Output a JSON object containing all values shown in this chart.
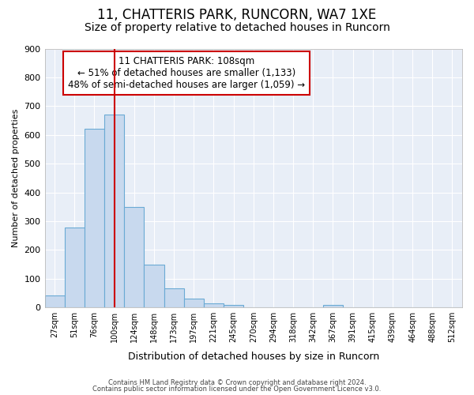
{
  "title1": "11, CHATTERIS PARK, RUNCORN, WA7 1XE",
  "title2": "Size of property relative to detached houses in Runcorn",
  "xlabel": "Distribution of detached houses by size in Runcorn",
  "ylabel": "Number of detached properties",
  "categories": [
    "27sqm",
    "51sqm",
    "76sqm",
    "100sqm",
    "124sqm",
    "148sqm",
    "173sqm",
    "197sqm",
    "221sqm",
    "245sqm",
    "270sqm",
    "294sqm",
    "318sqm",
    "342sqm",
    "367sqm",
    "391sqm",
    "415sqm",
    "439sqm",
    "464sqm",
    "488sqm",
    "512sqm"
  ],
  "values": [
    42,
    278,
    622,
    670,
    348,
    148,
    65,
    30,
    14,
    10,
    0,
    0,
    0,
    0,
    8,
    0,
    0,
    0,
    0,
    0,
    0
  ],
  "bar_color": "#c8d9ee",
  "bar_edge_color": "#6aaad4",
  "property_bin_index": 3,
  "annotation_title": "11 CHATTERIS PARK: 108sqm",
  "annotation_line1": "← 51% of detached houses are smaller (1,133)",
  "annotation_line2": "48% of semi-detached houses are larger (1,059) →",
  "vline_color": "#cc0000",
  "annotation_box_edge": "#cc0000",
  "footer1": "Contains HM Land Registry data © Crown copyright and database right 2024.",
  "footer2": "Contains public sector information licensed under the Open Government Licence v3.0.",
  "ylim": [
    0,
    900
  ],
  "yticks": [
    0,
    100,
    200,
    300,
    400,
    500,
    600,
    700,
    800,
    900
  ],
  "bg_color": "#ffffff",
  "plot_bg_color": "#e8eef7",
  "grid_color": "#ffffff",
  "title1_fontsize": 12,
  "title2_fontsize": 10
}
